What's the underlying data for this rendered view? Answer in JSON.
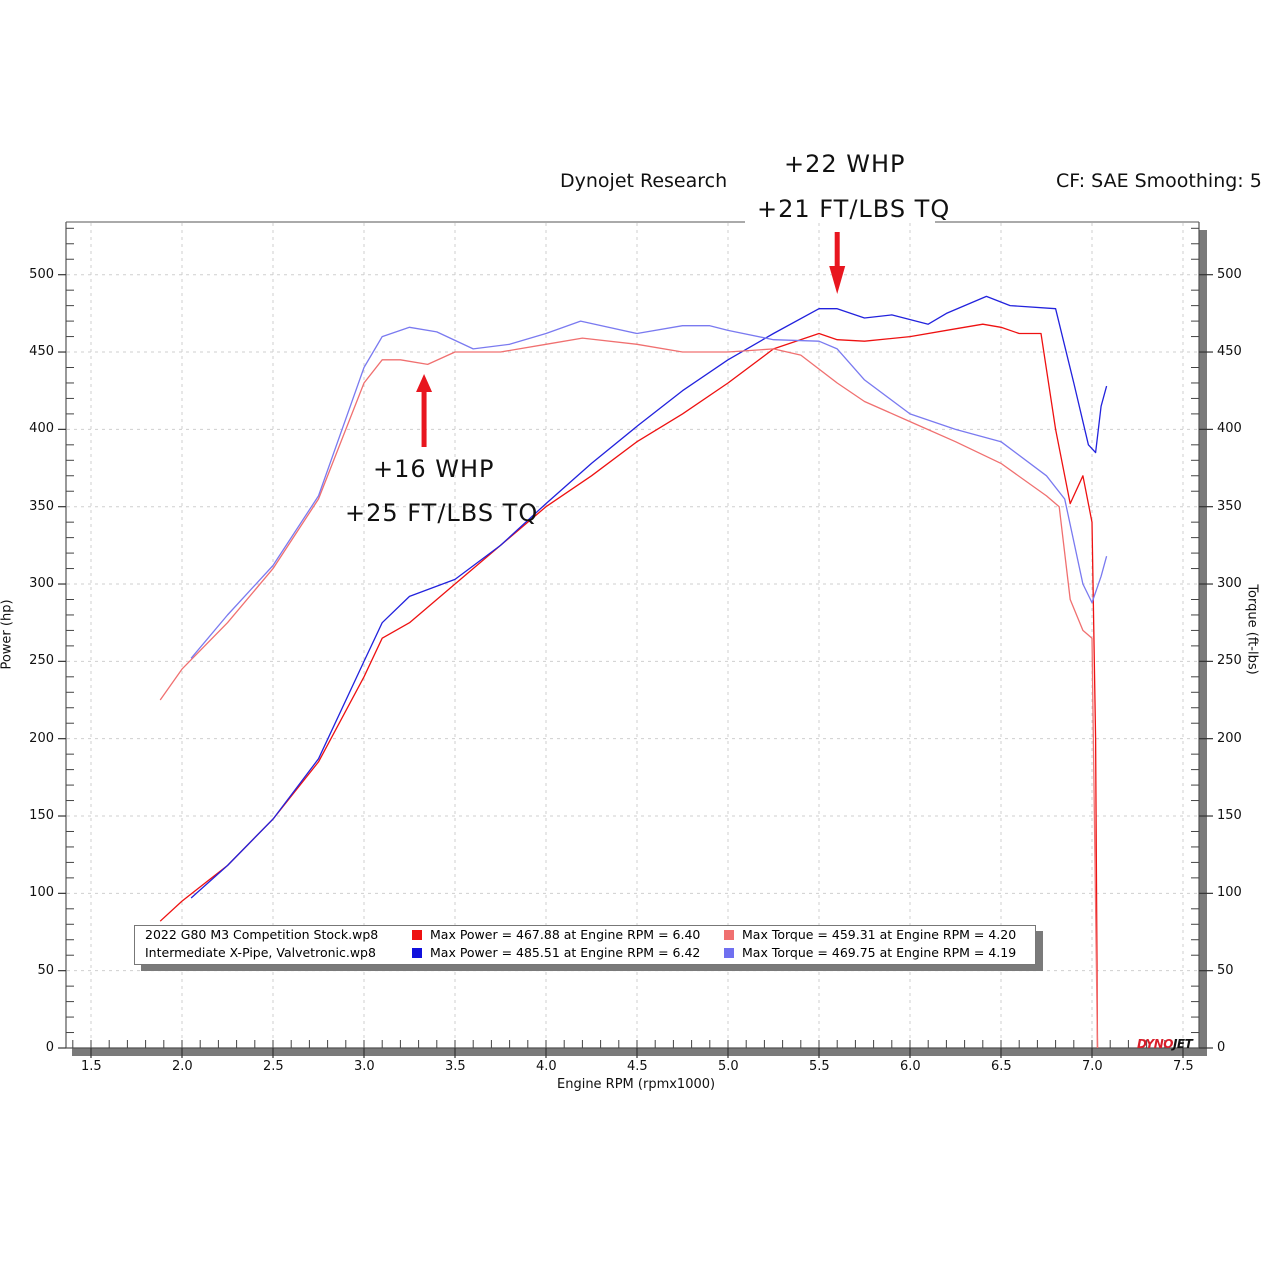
{
  "header": {
    "title": "Dynojet Research",
    "cf_label": "CF: SAE Smoothing: 5"
  },
  "annotations": {
    "peak_top": {
      "line1": "+22 WHP",
      "line2": "+21 FT/LBS TQ",
      "arrow_rpm": 5.6,
      "direction": "down"
    },
    "peak_mid": {
      "line1": "+16 WHP",
      "line2": "+25 FT/LBS TQ",
      "arrow_rpm": 3.33,
      "direction": "up"
    },
    "arrow_color": "#e8161f"
  },
  "legend": {
    "rows": [
      {
        "file": "2022 G80 M3 Competition Stock.wp8",
        "power_color": "#ee1111",
        "power_text": "Max Power = 467.88 at Engine RPM = 6.40",
        "torque_color": "#f07070",
        "torque_text": "Max Torque = 459.31 at Engine RPM = 4.20"
      },
      {
        "file": "Intermediate X-Pipe, Valvetronic.wp8",
        "power_color": "#1111dd",
        "power_text": "Max Power = 485.51 at Engine RPM = 6.42",
        "torque_color": "#7070f0",
        "torque_text": "Max Torque = 469.75 at Engine RPM = 4.19"
      }
    ]
  },
  "logo": {
    "part1": "DYNO",
    "part2": "JET",
    "color1": "#d81e2a",
    "color2": "#111111"
  },
  "chart_data": {
    "type": "line",
    "title": "Dynojet Research",
    "subtitle": "CF: SAE Smoothing: 5",
    "xlabel": "Engine RPM (rpmx1000)",
    "ylabel": "Power (hp)",
    "y2label": "Torque (ft-lbs)",
    "xlim": [
      1.37,
      7.6
    ],
    "ylim": [
      0,
      534
    ],
    "xticks": [
      "1.5",
      "2.0",
      "2.5",
      "3.0",
      "3.5",
      "4.0",
      "4.5",
      "5.0",
      "5.5",
      "6.0",
      "6.5",
      "7.0",
      "7.5"
    ],
    "yticks": [
      "0",
      "50",
      "100",
      "150",
      "200",
      "250",
      "300",
      "350",
      "400",
      "450",
      "500"
    ],
    "y2ticks": [
      "0",
      "50",
      "100",
      "150",
      "200",
      "250",
      "300",
      "350",
      "400",
      "450",
      "500"
    ],
    "grid": true,
    "legend_position": "bottom-inside",
    "series": [
      {
        "name": "2022 G80 M3 Competition Stock.wp8 - Power",
        "color": "#ee1111",
        "axis": "left",
        "x": [
          1.88,
          2.0,
          2.25,
          2.5,
          2.75,
          3.0,
          3.1,
          3.25,
          3.5,
          3.75,
          4.0,
          4.25,
          4.5,
          4.75,
          5.0,
          5.25,
          5.5,
          5.6,
          5.75,
          6.0,
          6.25,
          6.4,
          6.5,
          6.6,
          6.72,
          6.8,
          6.88,
          6.95,
          7.0,
          7.02,
          7.03
        ],
        "values": [
          82,
          95,
          118,
          148,
          185,
          240,
          265,
          275,
          300,
          325,
          350,
          370,
          392,
          410,
          430,
          452,
          462,
          458,
          457,
          460,
          465,
          468,
          466,
          462,
          462,
          400,
          352,
          370,
          340,
          200,
          0
        ]
      },
      {
        "name": "Intermediate X-Pipe, Valvetronic.wp8 - Power",
        "color": "#2222dd",
        "axis": "left",
        "x": [
          2.05,
          2.25,
          2.5,
          2.75,
          3.0,
          3.1,
          3.25,
          3.5,
          3.75,
          4.0,
          4.25,
          4.5,
          4.75,
          5.0,
          5.25,
          5.5,
          5.6,
          5.75,
          5.9,
          6.1,
          6.2,
          6.42,
          6.55,
          6.8,
          6.9,
          6.98,
          7.02,
          7.05,
          7.08
        ],
        "values": [
          97,
          118,
          148,
          187,
          250,
          275,
          292,
          303,
          325,
          352,
          378,
          402,
          425,
          445,
          462,
          478,
          478,
          472,
          474,
          468,
          475,
          486,
          480,
          478,
          430,
          390,
          385,
          415,
          428
        ]
      },
      {
        "name": "2022 G80 M3 Competition Stock.wp8 - Torque",
        "color": "#f07070",
        "axis": "right",
        "x": [
          1.88,
          2.0,
          2.25,
          2.5,
          2.75,
          2.85,
          3.0,
          3.1,
          3.2,
          3.35,
          3.5,
          3.75,
          4.0,
          4.2,
          4.5,
          4.75,
          5.0,
          5.25,
          5.4,
          5.6,
          5.75,
          6.0,
          6.25,
          6.5,
          6.75,
          6.82,
          6.88,
          6.95,
          7.0,
          7.03
        ],
        "values": [
          225,
          245,
          275,
          310,
          355,
          385,
          430,
          445,
          445,
          442,
          450,
          450,
          455,
          459,
          455,
          450,
          450,
          452,
          448,
          430,
          418,
          405,
          392,
          378,
          357,
          350,
          290,
          270,
          265,
          0
        ]
      },
      {
        "name": "Intermediate X-Pipe, Valvetronic.wp8 - Torque",
        "color": "#7a7af0",
        "axis": "right",
        "x": [
          2.05,
          2.25,
          2.5,
          2.75,
          3.0,
          3.1,
          3.25,
          3.4,
          3.6,
          3.8,
          4.0,
          4.19,
          4.5,
          4.75,
          4.9,
          5.0,
          5.25,
          5.5,
          5.6,
          5.75,
          6.0,
          6.25,
          6.5,
          6.75,
          6.85,
          6.95,
          7.0,
          7.05,
          7.08
        ],
        "values": [
          252,
          280,
          312,
          357,
          440,
          460,
          466,
          463,
          452,
          455,
          462,
          470,
          462,
          467,
          467,
          464,
          458,
          457,
          452,
          432,
          410,
          400,
          392,
          370,
          355,
          300,
          288,
          305,
          318
        ]
      }
    ]
  }
}
